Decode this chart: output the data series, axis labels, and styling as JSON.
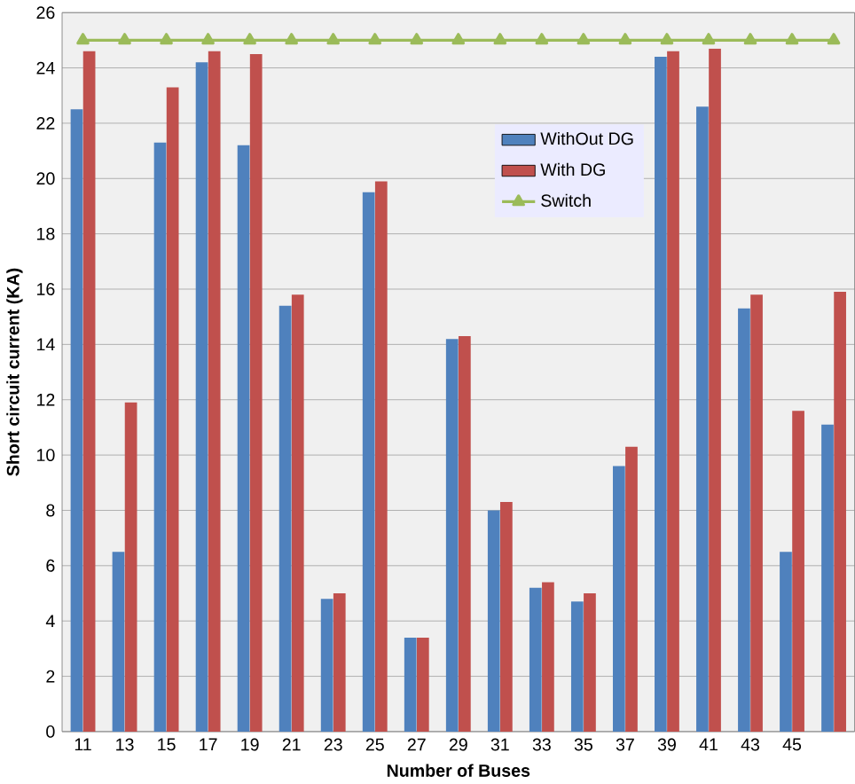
{
  "chart_data": {
    "type": "bar",
    "xlabel": "Number of Buses",
    "ylabel": "Short circuit current (KA)",
    "categories": [
      "11",
      "13",
      "15",
      "17",
      "19",
      "21",
      "23",
      "25",
      "27",
      "29",
      "31",
      "33",
      "35",
      "37",
      "39",
      "41",
      "43",
      "45",
      null
    ],
    "series": [
      {
        "name": "WithOut DG",
        "color": "#4f81bd",
        "values": [
          22.5,
          6.5,
          21.3,
          24.2,
          21.2,
          15.4,
          4.8,
          19.5,
          3.4,
          14.2,
          8.0,
          5.2,
          4.7,
          9.6,
          24.4,
          22.6,
          15.3,
          6.5,
          11.1
        ]
      },
      {
        "name": "With DG",
        "color": "#c0504d",
        "values": [
          24.6,
          11.9,
          23.3,
          24.6,
          24.5,
          15.8,
          5.0,
          19.9,
          3.4,
          14.3,
          8.3,
          5.4,
          5.0,
          10.3,
          24.6,
          24.7,
          15.8,
          11.6,
          15.9
        ]
      },
      {
        "name": "Switch",
        "type": "line",
        "color": "#9bbb59",
        "values": [
          25,
          25,
          25,
          25,
          25,
          25,
          25,
          25,
          25,
          25,
          25,
          25,
          25,
          25,
          25,
          25,
          25,
          25,
          25
        ]
      }
    ],
    "ylim": [
      0,
      26
    ],
    "yticks": [
      0,
      2,
      4,
      6,
      8,
      10,
      12,
      14,
      16,
      18,
      20,
      22,
      24,
      26
    ],
    "grid": "y",
    "legend": "center",
    "marker": "triangle"
  }
}
